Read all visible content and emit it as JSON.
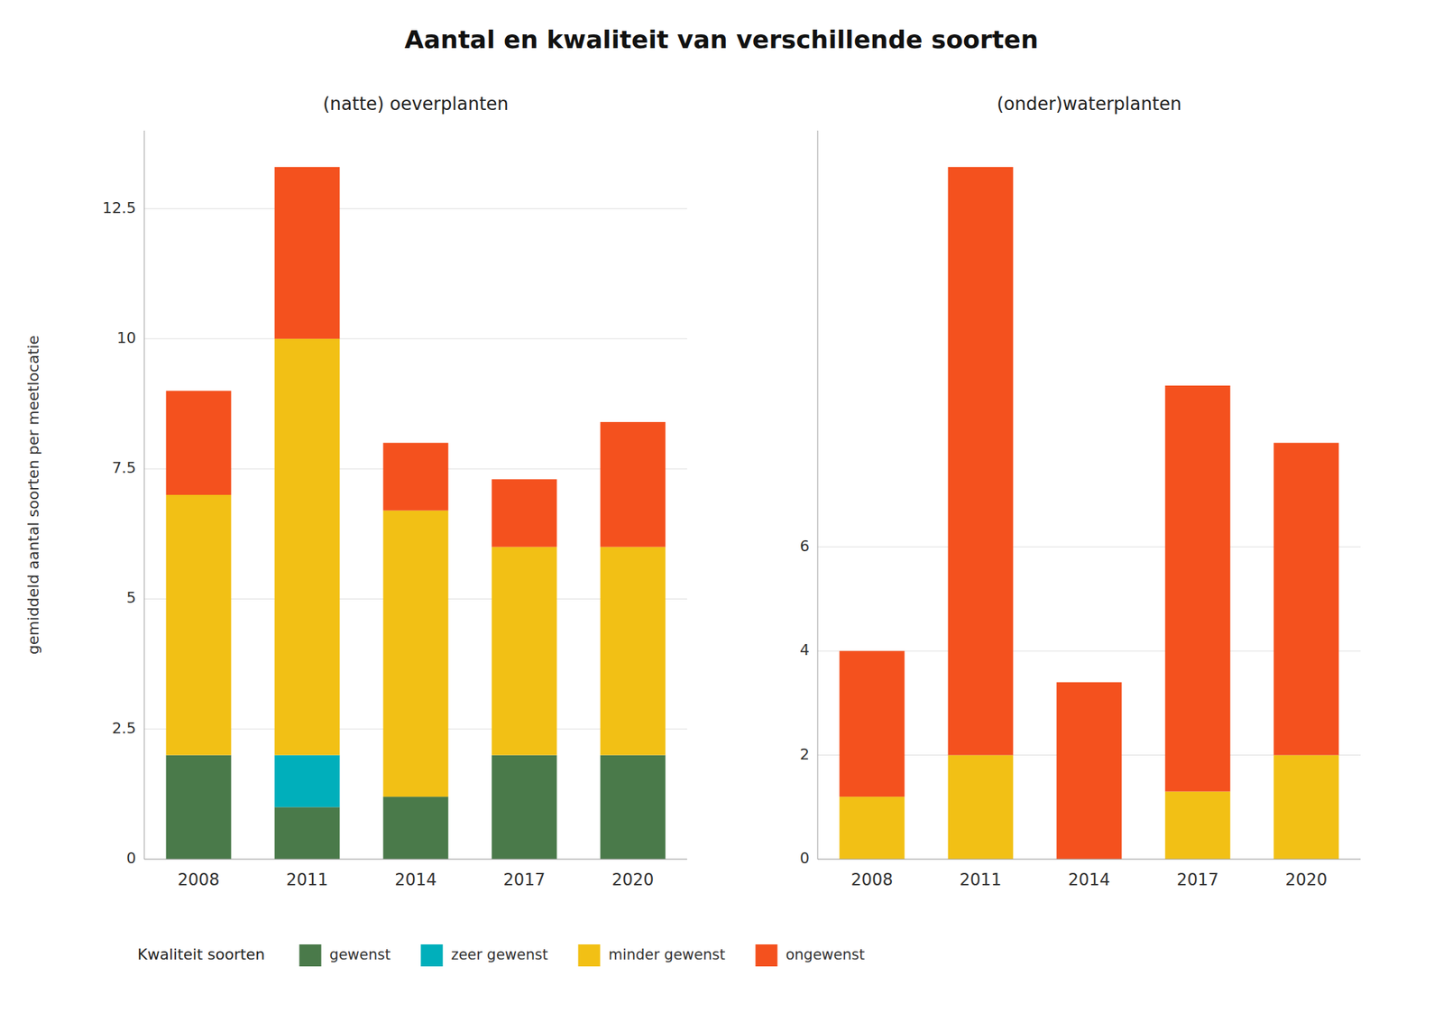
{
  "title": "Aantal en kwaliteit van verschillende soorten",
  "ylabel": "gemiddeld aantal soorten per meetlocatie",
  "legend_title": "Kwaliteit soorten",
  "chart_data": [
    {
      "type": "bar",
      "stacked": true,
      "grid": true,
      "legend": "bottom",
      "subtitle": "(natte) oeverplanten",
      "categories": [
        "2008",
        "2011",
        "2014",
        "2017",
        "2020"
      ],
      "series": [
        {
          "name": "gewenst",
          "color": "#4A7A4A",
          "values": [
            2.0,
            1.0,
            1.2,
            2.0,
            2.0
          ]
        },
        {
          "name": "zeer gewenst",
          "color": "#00AFBB",
          "values": [
            0.0,
            1.0,
            0.0,
            0.0,
            0.0
          ]
        },
        {
          "name": "minder gewenst",
          "color": "#F2C015",
          "values": [
            5.0,
            8.0,
            5.5,
            4.0,
            4.0
          ]
        },
        {
          "name": "ongewenst",
          "color": "#F4511E",
          "values": [
            2.0,
            3.3,
            1.3,
            1.3,
            2.4
          ]
        }
      ],
      "ylim": [
        0,
        14.0
      ],
      "yticks": [
        0,
        2.5,
        5,
        7.5,
        10,
        12.5
      ]
    },
    {
      "type": "bar",
      "stacked": true,
      "grid": true,
      "legend": "bottom",
      "subtitle": "(onder)waterplanten",
      "categories": [
        "2008",
        "2011",
        "2014",
        "2017",
        "2020"
      ],
      "series": [
        {
          "name": "gewenst",
          "color": "#4A7A4A",
          "values": [
            0.0,
            0.0,
            0.0,
            0.0,
            0.0
          ]
        },
        {
          "name": "zeer gewenst",
          "color": "#00AFBB",
          "values": [
            0.0,
            0.0,
            0.0,
            0.0,
            0.0
          ]
        },
        {
          "name": "minder gewenst",
          "color": "#F2C015",
          "values": [
            1.2,
            2.0,
            0.0,
            1.3,
            2.0
          ]
        },
        {
          "name": "ongewenst",
          "color": "#F4511E",
          "values": [
            2.8,
            11.3,
            3.4,
            7.8,
            6.0
          ]
        }
      ],
      "ylim": [
        0,
        14.0
      ],
      "yticks": [
        0,
        2,
        4,
        6
      ]
    }
  ]
}
